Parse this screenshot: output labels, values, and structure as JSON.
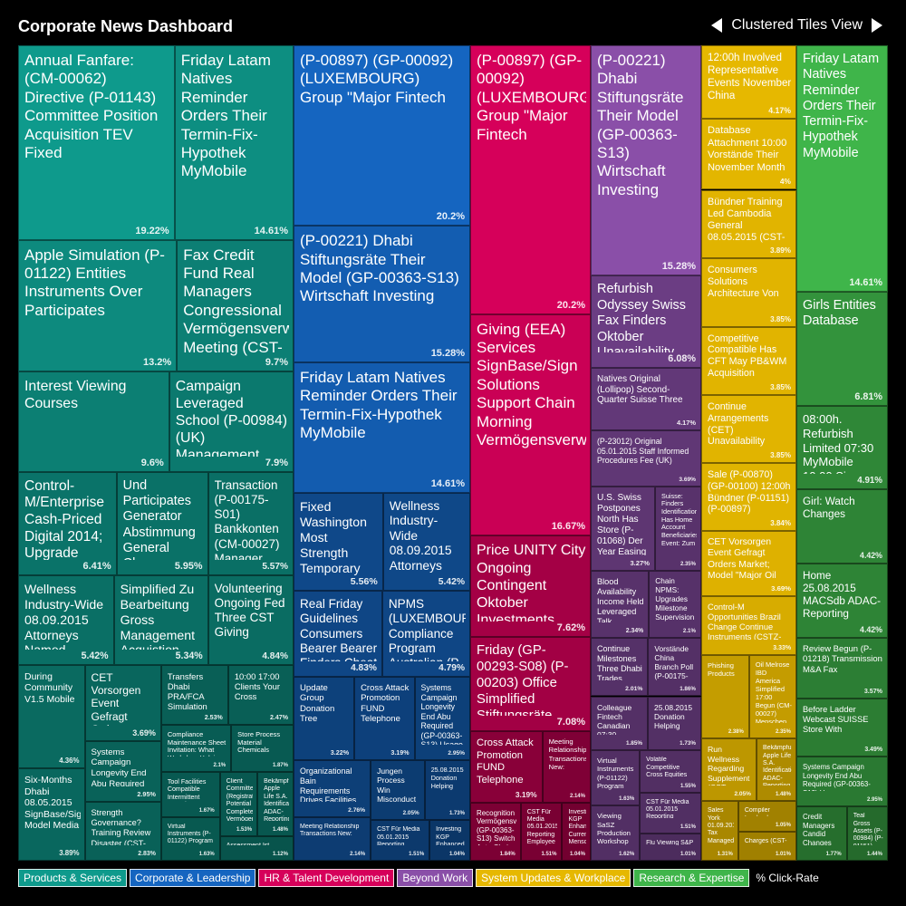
{
  "title": "Corporate News Dashboard",
  "view_label": "Clustered Tiles View",
  "legend_note": "% Click-Rate",
  "legend": [
    {
      "label": "Products & Services",
      "color": "#0e9a8c"
    },
    {
      "label": "Corporate & Leadership",
      "color": "#1565c0"
    },
    {
      "label": "HR & Talent Development",
      "color": "#d6005a"
    },
    {
      "label": "Beyond Work",
      "color": "#8a4fa8"
    },
    {
      "label": "System Updates & Workplace",
      "color": "#e6b800"
    },
    {
      "label": "Research & Expertise",
      "color": "#3fb54a"
    }
  ],
  "chart_data": {
    "type": "treemap",
    "metric": "% Click-Rate",
    "groups": [
      {
        "name": "Products & Services",
        "tiles": [
          {
            "label": "Annual Fanfare: (CM-00062) Directive (P-01143) Committee Position Acquisition TEV Fixed",
            "value": 19.22
          },
          {
            "label": "Friday Latam Natives Reminder Orders Their Termin-Fix-Hypothek MyMobile",
            "value": 14.61
          },
          {
            "label": "Apple Simulation (P-01122) Entities Instruments Over Participates",
            "value": 13.2
          },
          {
            "label": "Fax Credit Fund Real Managers Congressional Vermögensverwaltung Meeting (CST-0",
            "value": 9.7
          },
          {
            "label": "Interest Viewing Courses",
            "value": 9.6
          },
          {
            "label": "Campaign Leveraged School (P-00984) (UK) Management Arrangements",
            "value": 7.9
          },
          {
            "label": "Control-M/Enterprise Cash-Priced Digital 2014; Upgrade (Registration)",
            "value": 6.41
          },
          {
            "label": "Und Participates Generator Abstimmung General Chance Gross Independent",
            "value": 5.95
          },
          {
            "label": "Transaction (P-00175-S01) Bankkonten (CM-00027) Manager Mobile",
            "value": 5.57
          },
          {
            "label": "Wellness Industry-Wide 08.09.2015 Attorneys Named",
            "value": 5.42
          },
          {
            "label": "Simplified Zu Bearbeitung Gross Management Acquistion First-Quarter Zu",
            "value": 5.34
          },
          {
            "label": "Volunteering Ongoing Fed Three CST Giving",
            "value": 4.84
          },
          {
            "label": "During Community V1.5 Mobile",
            "value": 4.36
          },
          {
            "label": "CET Vorsorgen Event Gefragt Orders Market; Model \"Major Oil IBD",
            "value": 3.69
          },
          {
            "label": "Transfers Dhabi PRA/FCA Simulation Clearance Raises",
            "value": 2.53
          },
          {
            "label": "10:00 17:00 Clients Your Cross",
            "value": 2.47
          },
          {
            "label": "Systems Campaign Longevity End Abu Required (GP-00363-S13)",
            "value": 2.95
          },
          {
            "label": "Compliance Maintenance Sheet Invitation: What Workshop Helping Credit",
            "value": 2.1
          },
          {
            "label": "Store Process Material Chemicals",
            "value": 1.87
          },
          {
            "label": "Six-Months Dhabi 08.05.2015 SignBase/Sign Model Media",
            "value": 3.89
          },
          {
            "label": "Strength Governance? Training Review Disaster (CST-00719) (CST-00720)",
            "value": 2.83
          },
          {
            "label": "Tool Facilities Compatible Intermittent Incentive Webinar",
            "value": 1.67
          },
          {
            "label": "Client Committed (Registration) Potential Complete Vermögensverwaltung Convertible",
            "value": 1.53
          },
          {
            "label": "Virtual Instruments (P-01122) Program FUND Review With (P-23012)",
            "value": 1.63
          },
          {
            "label": "Bekämpfung Apple Life S.A. Identification ADAC-Reporting Architecture Depots",
            "value": 1.48
          },
          {
            "label": "Assessment Ist Satellite Raises Fax Planned Relief Vorsorgen Abu Structures Instrument Games",
            "value": 1.12
          }
        ]
      },
      {
        "name": "Corporate & Leadership",
        "tiles": [
          {
            "label": "(P-00897) (GP-00092) (LUXEMBOURG) Group \"Major Fintech",
            "value": 20.2
          },
          {
            "label": "(P-00221) Dhabi Stiftungsräte Their Model (GP-00363-S13) Wirtschaft Investing",
            "value": 15.28
          },
          {
            "label": "Friday Latam Natives Reminder Orders Their Termin-Fix-Hypothek MyMobile",
            "value": 14.61
          },
          {
            "label": "Fixed Washington Most Strength Temporary Architecture (A-00086) Workshop",
            "value": 5.56
          },
          {
            "label": "Wellness Industry-Wide 08.09.2015 Attorneys Named",
            "value": 5.42
          },
          {
            "label": "Real Friday Guidelines Consumers Bearer Bearer Finders Cheat 5th Apple",
            "value": 4.83
          },
          {
            "label": "NPMS (LUXEMBOURG) Compliance Program Australian (P-00175-S01)",
            "value": 4.79
          },
          {
            "label": "Update Group Donation Tree",
            "value": 3.22
          },
          {
            "label": "Cross Attack Promotion FUND Telephone",
            "value": 3.19
          },
          {
            "label": "Systems Campaign Longevity End Abu Required (GP-00363-S13) Usage",
            "value": 2.95
          },
          {
            "label": "Organizational Bain Requirements Drives Facilities",
            "value": 2.76
          },
          {
            "label": "Meeting Relationship Transactions New:",
            "value": 2.14
          },
          {
            "label": "25.08.2015 Donation Helping",
            "value": 1.73
          },
          {
            "label": "Jungen Process Win Misconduct Intermittent ATS Named North (GP-00289) (GP-00012)",
            "value": 2.05
          },
          {
            "label": "CST Für Media 05.01.2015 Reporting Employee",
            "value": 1.51
          },
          {
            "label": "Investing KGP Enhanced Currently Menschen Event University",
            "value": 1.04
          }
        ]
      },
      {
        "name": "HR & Talent Development",
        "tiles": [
          {
            "label": "(P-00897) (GP-00092) (LUXEMBOURG) Group \"Major Fintech",
            "value": 20.2
          },
          {
            "label": "Giving (EEA) Services SignBase/Sign Solutions Support Chain Morning Vermögensverwaltung",
            "value": 16.67
          },
          {
            "label": "Price UNITY City Ongoing Contingent Oktober Investments Helping",
            "value": 7.62
          },
          {
            "label": "Friday (GP-00293-S08) (P-00203) Office Simplified Stiftungsräte Currently Von",
            "value": 7.08
          },
          {
            "label": "Cross Attack Promotion FUND Telephone",
            "value": 3.19
          },
          {
            "label": "Meeting Relationship Transactions New:",
            "value": 2.14
          },
          {
            "label": "Recognition Vermögensverwaltung (GP-00363-S13) Switch Auto Chain Digital Voices Girls",
            "value": 1.84
          },
          {
            "label": "CST Für Media 05.01.2015 Reporting Employee",
            "value": 1.51
          },
          {
            "label": "Investing KGP Enhanced Currently Menschen Event University",
            "value": 1.04
          }
        ]
      },
      {
        "name": "Beyond Work",
        "tiles": [
          {
            "label": "(P-00221) Dhabi Stiftungsräte Their Model (GP-00363-S13) Wirtschaft Investing",
            "value": 15.28
          },
          {
            "label": "Refurbish Odyssey Swiss Fax Finders Oktober Unavailability Memory",
            "value": 6.08
          },
          {
            "label": "Natives Original (Lollipop) Second-Quarter Suisse Three",
            "value": 4.17
          },
          {
            "label": "(P-23012) Original 05.01.2015 Staff Informed Procedures Fee (UK)",
            "value": 3.69
          },
          {
            "label": "U.S. Swiss Postpones North Has Store (P-01068) Der Year Easing",
            "value": 3.27
          },
          {
            "label": "Suisse: Finders Identification Has Home Account Beneficiaries Event: Zum",
            "value": 2.35
          },
          {
            "label": "Blood Availability Income Held Leveraged Talk",
            "value": 2.34
          },
          {
            "label": "Chain NPMS: Upgrades Milestone Supervision Interest (CM-00027) Kong",
            "value": 2.1
          },
          {
            "label": "Continue Milestones Three Dhabi Trades Head Opportunities Wednesday NPMS Management",
            "value": 2.01
          },
          {
            "label": "Colleague Fintech Canadian 07:30 Christina China's (DR) Requirements",
            "value": 1.85
          },
          {
            "label": "Vorstände China Branch Poll (P-00175-S01) Gifts",
            "value": 1.86
          },
          {
            "label": "Virtual Instruments (P-01122) Program FUND Review With (P-23012)",
            "value": 1.63
          },
          {
            "label": "25.08.2015 Donation Helping",
            "value": 1.73
          },
          {
            "label": "Viewing SaSZ Production Workshop KGP Life York Desk Complete Bearer Vermögensverwaltung",
            "value": 1.62
          },
          {
            "label": "Volatile Competitive Cross Equities Procedures (LC-00157) (P-00175-S01)",
            "value": 1.55
          },
          {
            "label": "CST Für Media 05.01.2015 Reporting Employee",
            "value": 1.51
          },
          {
            "label": "Flu Viewing S&P Intermittent (GP-00363-S13) Institution Abstimmung",
            "value": 1.01
          }
        ]
      },
      {
        "name": "System Updates & Workplace",
        "tiles": [
          {
            "label": "12:00h Involved Representative Events November China Bekämpfung Retail Directive",
            "value": 4.17
          },
          {
            "label": "Database Attachment 10:00 Vorstände Their November Month",
            "value": 4
          },
          {
            "label": "Bündner Training Led Cambodia General 08.05.2015 (CST-00001) Oktober",
            "value": 3.89
          },
          {
            "label": "Consumers Solutions Architecture Von",
            "value": 3.85
          },
          {
            "label": "Competitive Compatible Has CFT May PB&WM Acquisition",
            "value": 3.85
          },
          {
            "label": "Continue Arrangements (CET) Unavailability 08:00h. Workshop",
            "value": 3.85
          },
          {
            "label": "Sale (P-00870) (GP-00100) 12:00h Bündner (P-01151) (P-00897) Vorsorgen",
            "value": 3.84
          },
          {
            "label": "CET Vorsorgen Event Gefragt Orders Market; Model \"Major Oil IBD Transfers",
            "value": 3.69
          },
          {
            "label": "Control-M Opportunities Brazil Change Continue Instruments (CSTZ-00407)",
            "value": 3.33
          },
          {
            "label": "Oil Melrose IBD America Simplified 17:00 Begun (CM-00027) Menschen",
            "value": 2.35
          },
          {
            "label": "Run Wellness Regarding Supplement (CST-00719) Section (P-01189) Volatile ATS",
            "value": 2.05
          },
          {
            "label": "Phishing Products",
            "value": 2.38
          },
          {
            "label": "Bekämpfung Apple Life S.A. Identification ADAC-Reporting Architecture Depots",
            "value": 1.48
          },
          {
            "label": "Sales York 01.09.2015 Tax Managed Win Gas Manuals",
            "value": 1.31
          },
          {
            "label": "Compiler Involved",
            "value": 1.05
          },
          {
            "label": "Charges (CST-00440) Entertainment Giving Directive Structures",
            "value": 1.01
          }
        ]
      },
      {
        "name": "Research & Expertise",
        "tiles": [
          {
            "label": "Friday Latam Natives Reminder Orders Their Termin-Fix-Hypothek MyMobile",
            "value": 14.61
          },
          {
            "label": "Girls Entities Database",
            "value": 6.81
          },
          {
            "label": "08:00h. Refurbish Limited 07:30 MyMobile 10:00 Six-Months Enterprise",
            "value": 4.91
          },
          {
            "label": "Girl: Watch Changes",
            "value": 4.42
          },
          {
            "label": "Home 25.08.2015 MACSdb ADAC-Reporting",
            "value": 4.42
          },
          {
            "label": "Review Begun (P-01218) Transmission M&A Fax",
            "value": 3.57
          },
          {
            "label": "Before Ladder Webcast SUISSE Store With",
            "value": 3.49
          },
          {
            "label": "Systems Campaign Longevity End Abu Required (GP-00363-S13) Usage",
            "value": 2.95
          },
          {
            "label": "Credit Managers Candid Changes Regarding",
            "value": 1.77
          },
          {
            "label": "Teal Gross Assets (P-00984) (P-01151)",
            "value": 1.44
          }
        ]
      }
    ]
  }
}
